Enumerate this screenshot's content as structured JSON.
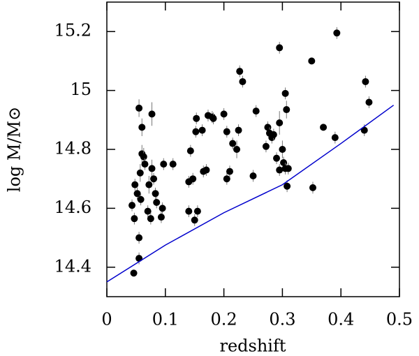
{
  "chart_data": {
    "type": "scatter",
    "xlabel": "redshift",
    "ylabel": "log M/M⊙",
    "xlim": [
      0,
      0.5
    ],
    "ylim": [
      14.3,
      15.3
    ],
    "xticks": [
      0,
      0.1,
      0.2,
      0.3,
      0.4,
      0.5
    ],
    "yticks": [
      14.4,
      14.6,
      14.8,
      15,
      15.2
    ],
    "series": [
      {
        "type": "scatter",
        "color": "#000000",
        "x": [
          0.046,
          0.043,
          0.047,
          0.048,
          0.052,
          0.055,
          0.057,
          0.055,
          0.055,
          0.058,
          0.06,
          0.06,
          0.063,
          0.065,
          0.07,
          0.072,
          0.075,
          0.077,
          0.077,
          0.08,
          0.083,
          0.085,
          0.093,
          0.095,
          0.097,
          0.113,
          0.14,
          0.14,
          0.143,
          0.147,
          0.15,
          0.152,
          0.153,
          0.155,
          0.163,
          0.165,
          0.17,
          0.173,
          0.18,
          0.182,
          0.2,
          0.205,
          0.205,
          0.21,
          0.215,
          0.222,
          0.225,
          0.227,
          0.232,
          0.25,
          0.255,
          0.272,
          0.275,
          0.278,
          0.282,
          0.285,
          0.29,
          0.295,
          0.295,
          0.295,
          0.3,
          0.302,
          0.305,
          0.305,
          0.307,
          0.308,
          0.31,
          0.35,
          0.352,
          0.37,
          0.39,
          0.393,
          0.44,
          0.442,
          0.448
        ],
        "values": [
          14.38,
          14.61,
          14.565,
          14.68,
          14.65,
          14.94,
          14.72,
          14.5,
          14.43,
          14.63,
          14.875,
          14.785,
          14.775,
          14.75,
          14.59,
          14.68,
          14.565,
          14.92,
          14.735,
          14.7,
          14.65,
          14.62,
          14.57,
          14.6,
          14.75,
          14.75,
          14.59,
          14.69,
          14.795,
          14.7,
          14.56,
          14.86,
          14.905,
          14.59,
          14.865,
          14.725,
          14.73,
          14.915,
          14.91,
          14.905,
          14.92,
          14.86,
          14.7,
          14.725,
          14.82,
          14.8,
          14.865,
          15.065,
          15.03,
          14.71,
          14.93,
          14.81,
          14.875,
          14.855,
          14.84,
          14.85,
          14.77,
          14.89,
          15.145,
          14.73,
          14.8,
          14.755,
          14.735,
          14.99,
          14.935,
          14.675,
          14.735,
          15.1,
          14.67,
          14.875,
          14.84,
          15.195,
          14.865,
          15.03,
          14.96
        ],
        "yerr": [
          0.01,
          0.02,
          0.02,
          0.02,
          0.02,
          0.03,
          0.03,
          0.02,
          0.02,
          0.02,
          0.03,
          0.03,
          0.03,
          0.02,
          0.02,
          0.03,
          0.02,
          0.04,
          0.03,
          0.02,
          0.02,
          0.02,
          0.02,
          0.02,
          0.02,
          0.02,
          0.02,
          0.02,
          0.02,
          0.02,
          0.02,
          0.02,
          0.02,
          0.02,
          0.02,
          0.02,
          0.02,
          0.02,
          0.02,
          0.02,
          0.02,
          0.02,
          0.02,
          0.02,
          0.02,
          0.03,
          0.02,
          0.02,
          0.02,
          0.02,
          0.02,
          0.02,
          0.02,
          0.02,
          0.02,
          0.02,
          0.02,
          0.04,
          0.02,
          0.02,
          0.03,
          0.02,
          0.02,
          0.02,
          0.03,
          0.02,
          0.02,
          0.01,
          0.02,
          0.01,
          0.02,
          0.02,
          0.02,
          0.02,
          0.02
        ]
      },
      {
        "type": "line",
        "color": "#0000cc",
        "x": [
          0,
          0.1,
          0.2,
          0.3,
          0.4,
          0.49
        ],
        "values": [
          14.35,
          14.475,
          14.585,
          14.68,
          14.82,
          14.95
        ]
      }
    ]
  }
}
